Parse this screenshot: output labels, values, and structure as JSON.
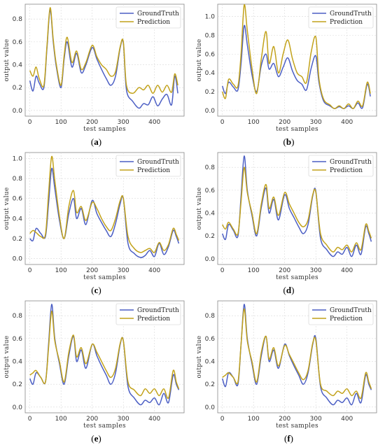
{
  "colors": {
    "ground_truth": "#4c5fc4",
    "prediction": "#c2a21a",
    "grid": "#d9d9d9",
    "frame": "#888888"
  },
  "chart_data": [
    {
      "type": "line",
      "panel": "(a)",
      "caption_letter": "a",
      "xlabel": "test samples",
      "ylabel": "output value",
      "xlim": [
        -15,
        495
      ],
      "ylim": [
        -0.05,
        0.93
      ],
      "xticks": [
        0,
        100,
        200,
        300,
        400
      ],
      "yticks": [
        0.0,
        0.2,
        0.4,
        0.6,
        0.8
      ],
      "yticklabels": [
        "0.0",
        "0.2",
        "0.4",
        "0.6",
        "0.8"
      ],
      "legend": "top-right",
      "series": [
        {
          "name": "GroundTruth",
          "x": [
            0,
            10,
            20,
            30,
            45,
            55,
            65,
            75,
            85,
            100,
            110,
            120,
            135,
            150,
            165,
            180,
            200,
            215,
            230,
            245,
            260,
            275,
            290,
            300,
            310,
            330,
            350,
            365,
            380,
            395,
            410,
            425,
            440,
            455,
            465,
            475
          ],
          "y": [
            0.26,
            0.17,
            0.3,
            0.24,
            0.2,
            0.55,
            0.88,
            0.6,
            0.38,
            0.2,
            0.45,
            0.6,
            0.38,
            0.5,
            0.33,
            0.4,
            0.55,
            0.45,
            0.36,
            0.28,
            0.22,
            0.3,
            0.55,
            0.59,
            0.18,
            0.08,
            0.02,
            0.06,
            0.05,
            0.12,
            0.04,
            0.1,
            0.14,
            0.05,
            0.3,
            0.15
          ]
        },
        {
          "name": "Prediction",
          "x": [
            0,
            10,
            20,
            30,
            45,
            55,
            65,
            75,
            85,
            100,
            110,
            120,
            135,
            150,
            165,
            180,
            200,
            215,
            230,
            245,
            260,
            275,
            290,
            300,
            310,
            330,
            350,
            365,
            380,
            395,
            410,
            425,
            440,
            455,
            465,
            475
          ],
          "y": [
            0.35,
            0.3,
            0.38,
            0.28,
            0.22,
            0.57,
            0.9,
            0.62,
            0.4,
            0.22,
            0.48,
            0.64,
            0.42,
            0.52,
            0.36,
            0.42,
            0.57,
            0.47,
            0.4,
            0.36,
            0.3,
            0.34,
            0.56,
            0.6,
            0.22,
            0.15,
            0.2,
            0.18,
            0.22,
            0.15,
            0.22,
            0.16,
            0.22,
            0.16,
            0.32,
            0.22
          ]
        }
      ]
    },
    {
      "type": "line",
      "panel": "(b)",
      "caption_letter": "b",
      "xlabel": "test samples",
      "ylabel": "output value",
      "xlim": [
        -15,
        495
      ],
      "ylim": [
        -0.06,
        1.13
      ],
      "xticks": [
        0,
        100,
        200,
        300,
        400
      ],
      "yticks": [
        0.0,
        0.2,
        0.4,
        0.6,
        0.8,
        1.0
      ],
      "yticklabels": [
        "0.0",
        "0.2",
        "0.4",
        "0.6",
        "0.8",
        "1.0"
      ],
      "legend": "top-right",
      "series": [
        {
          "name": "GroundTruth",
          "x": [
            0,
            10,
            20,
            35,
            50,
            60,
            70,
            80,
            95,
            110,
            125,
            140,
            150,
            165,
            180,
            195,
            210,
            225,
            240,
            255,
            270,
            285,
            300,
            310,
            325,
            345,
            360,
            375,
            390,
            405,
            420,
            435,
            450,
            465,
            475
          ],
          "y": [
            0.26,
            0.18,
            0.3,
            0.25,
            0.22,
            0.5,
            0.9,
            0.7,
            0.38,
            0.2,
            0.48,
            0.6,
            0.44,
            0.5,
            0.36,
            0.46,
            0.56,
            0.42,
            0.32,
            0.28,
            0.22,
            0.45,
            0.58,
            0.3,
            0.1,
            0.05,
            0.02,
            0.04,
            0.02,
            0.05,
            0.02,
            0.08,
            0.03,
            0.28,
            0.15
          ]
        },
        {
          "name": "Prediction",
          "x": [
            0,
            10,
            20,
            35,
            50,
            60,
            70,
            80,
            95,
            110,
            125,
            140,
            150,
            165,
            180,
            195,
            210,
            225,
            240,
            255,
            270,
            285,
            300,
            310,
            325,
            345,
            360,
            375,
            390,
            405,
            420,
            435,
            450,
            465,
            475
          ],
          "y": [
            0.2,
            0.13,
            0.33,
            0.28,
            0.26,
            0.6,
            1.12,
            0.85,
            0.45,
            0.18,
            0.55,
            0.84,
            0.5,
            0.68,
            0.4,
            0.6,
            0.75,
            0.55,
            0.4,
            0.36,
            0.3,
            0.62,
            0.78,
            0.34,
            0.12,
            0.06,
            0.02,
            0.05,
            0.02,
            0.07,
            0.02,
            0.1,
            0.05,
            0.3,
            0.18
          ]
        }
      ]
    },
    {
      "type": "line",
      "panel": "(c)",
      "caption_letter": "c",
      "xlabel": "test samples",
      "ylabel": "output value",
      "xlim": [
        -15,
        495
      ],
      "ylim": [
        -0.06,
        1.06
      ],
      "xticks": [
        0,
        100,
        200,
        300,
        400
      ],
      "yticks": [
        0.0,
        0.2,
        0.4,
        0.6,
        0.8,
        1.0
      ],
      "yticklabels": [
        "0.0",
        "0.2",
        "0.4",
        "0.6",
        "0.8",
        "1.0"
      ],
      "legend": "top-right",
      "series": [
        {
          "name": "GroundTruth",
          "x": [
            0,
            10,
            20,
            35,
            50,
            60,
            70,
            80,
            95,
            110,
            125,
            140,
            150,
            165,
            180,
            200,
            215,
            230,
            245,
            260,
            275,
            290,
            300,
            315,
            335,
            355,
            370,
            385,
            400,
            415,
            430,
            445,
            460,
            470,
            478
          ],
          "y": [
            0.2,
            0.18,
            0.3,
            0.25,
            0.22,
            0.55,
            0.9,
            0.7,
            0.38,
            0.2,
            0.45,
            0.6,
            0.4,
            0.5,
            0.34,
            0.58,
            0.45,
            0.36,
            0.28,
            0.22,
            0.35,
            0.55,
            0.6,
            0.15,
            0.05,
            0.01,
            0.03,
            0.08,
            0.02,
            0.15,
            0.04,
            0.12,
            0.28,
            0.22,
            0.15
          ]
        },
        {
          "name": "Prediction",
          "x": [
            0,
            10,
            20,
            35,
            50,
            60,
            70,
            80,
            95,
            110,
            125,
            140,
            150,
            165,
            180,
            200,
            215,
            230,
            245,
            260,
            275,
            290,
            300,
            315,
            335,
            355,
            370,
            385,
            400,
            415,
            430,
            445,
            460,
            470,
            478
          ],
          "y": [
            0.25,
            0.28,
            0.26,
            0.22,
            0.24,
            0.65,
            1.02,
            0.78,
            0.42,
            0.2,
            0.52,
            0.68,
            0.46,
            0.52,
            0.38,
            0.56,
            0.5,
            0.4,
            0.32,
            0.28,
            0.4,
            0.58,
            0.6,
            0.22,
            0.1,
            0.06,
            0.08,
            0.1,
            0.06,
            0.16,
            0.08,
            0.14,
            0.3,
            0.24,
            0.18
          ]
        }
      ]
    },
    {
      "type": "line",
      "panel": "(d)",
      "caption_letter": "d",
      "xlabel": "test samples",
      "ylabel": "output value",
      "xlim": [
        -15,
        495
      ],
      "ylim": [
        -0.05,
        0.93
      ],
      "xticks": [
        0,
        100,
        200,
        300,
        400
      ],
      "yticks": [
        0.0,
        0.2,
        0.4,
        0.6,
        0.8
      ],
      "yticklabels": [
        "0.0",
        "0.2",
        "0.4",
        "0.6",
        "0.8"
      ],
      "legend": "top-right",
      "series": [
        {
          "name": "GroundTruth",
          "x": [
            0,
            10,
            20,
            35,
            50,
            60,
            70,
            80,
            95,
            110,
            125,
            140,
            150,
            165,
            180,
            200,
            215,
            230,
            245,
            260,
            275,
            290,
            300,
            315,
            335,
            355,
            370,
            385,
            400,
            415,
            430,
            445,
            460,
            470,
            478
          ],
          "y": [
            0.22,
            0.17,
            0.3,
            0.25,
            0.2,
            0.55,
            0.9,
            0.6,
            0.38,
            0.2,
            0.45,
            0.62,
            0.4,
            0.52,
            0.34,
            0.56,
            0.44,
            0.36,
            0.28,
            0.22,
            0.3,
            0.55,
            0.59,
            0.18,
            0.08,
            0.02,
            0.06,
            0.04,
            0.1,
            0.02,
            0.12,
            0.04,
            0.28,
            0.22,
            0.15
          ]
        },
        {
          "name": "Prediction",
          "x": [
            0,
            10,
            20,
            35,
            50,
            60,
            70,
            80,
            95,
            110,
            125,
            140,
            150,
            165,
            180,
            200,
            215,
            230,
            245,
            260,
            275,
            290,
            300,
            315,
            335,
            355,
            370,
            385,
            400,
            415,
            430,
            445,
            460,
            470,
            478
          ],
          "y": [
            0.3,
            0.26,
            0.32,
            0.26,
            0.22,
            0.5,
            0.8,
            0.58,
            0.4,
            0.22,
            0.48,
            0.65,
            0.44,
            0.54,
            0.38,
            0.58,
            0.48,
            0.4,
            0.32,
            0.28,
            0.34,
            0.56,
            0.58,
            0.22,
            0.12,
            0.06,
            0.1,
            0.08,
            0.12,
            0.06,
            0.14,
            0.08,
            0.3,
            0.24,
            0.18
          ]
        }
      ]
    },
    {
      "type": "line",
      "panel": "(e)",
      "caption_letter": "e",
      "xlabel": "test samples",
      "ylabel": "output value",
      "xlim": [
        -15,
        495
      ],
      "ylim": [
        -0.05,
        0.93
      ],
      "xticks": [
        0,
        100,
        200,
        300,
        400
      ],
      "yticks": [
        0.0,
        0.2,
        0.4,
        0.6,
        0.8
      ],
      "yticklabels": [
        "0.0",
        "0.2",
        "0.4",
        "0.6",
        "0.8"
      ],
      "legend": "top-right",
      "series": [
        {
          "name": "GroundTruth",
          "x": [
            0,
            10,
            20,
            35,
            50,
            60,
            70,
            80,
            95,
            110,
            125,
            140,
            150,
            165,
            180,
            200,
            215,
            230,
            245,
            260,
            275,
            290,
            300,
            315,
            335,
            355,
            370,
            385,
            400,
            415,
            430,
            445,
            460,
            470,
            478
          ],
          "y": [
            0.25,
            0.2,
            0.3,
            0.26,
            0.22,
            0.55,
            0.9,
            0.6,
            0.38,
            0.2,
            0.45,
            0.62,
            0.4,
            0.5,
            0.34,
            0.55,
            0.45,
            0.36,
            0.28,
            0.2,
            0.3,
            0.55,
            0.58,
            0.18,
            0.08,
            0.02,
            0.06,
            0.04,
            0.08,
            0.02,
            0.12,
            0.04,
            0.28,
            0.2,
            0.15
          ]
        },
        {
          "name": "Prediction",
          "x": [
            0,
            10,
            20,
            35,
            50,
            60,
            70,
            80,
            95,
            110,
            125,
            140,
            150,
            165,
            180,
            200,
            215,
            230,
            245,
            260,
            275,
            290,
            300,
            315,
            335,
            355,
            370,
            385,
            400,
            415,
            430,
            445,
            460,
            470,
            478
          ],
          "y": [
            0.28,
            0.3,
            0.32,
            0.26,
            0.22,
            0.52,
            0.84,
            0.58,
            0.4,
            0.22,
            0.48,
            0.63,
            0.44,
            0.52,
            0.38,
            0.55,
            0.48,
            0.4,
            0.32,
            0.26,
            0.34,
            0.56,
            0.58,
            0.22,
            0.15,
            0.1,
            0.16,
            0.12,
            0.16,
            0.1,
            0.16,
            0.08,
            0.32,
            0.22,
            0.16
          ]
        }
      ]
    },
    {
      "type": "line",
      "panel": "(f)",
      "caption_letter": "f",
      "xlabel": "test samples",
      "ylabel": "output value",
      "xlim": [
        -15,
        495
      ],
      "ylim": [
        -0.05,
        0.93
      ],
      "xticks": [
        0,
        100,
        200,
        300,
        400
      ],
      "yticks": [
        0.0,
        0.2,
        0.4,
        0.6,
        0.8
      ],
      "yticklabels": [
        "0.0",
        "0.2",
        "0.4",
        "0.6",
        "0.8"
      ],
      "legend": "top-right",
      "series": [
        {
          "name": "GroundTruth",
          "x": [
            0,
            10,
            20,
            35,
            50,
            60,
            70,
            80,
            95,
            110,
            125,
            140,
            150,
            165,
            180,
            200,
            215,
            230,
            245,
            260,
            275,
            290,
            300,
            315,
            335,
            355,
            370,
            385,
            400,
            415,
            430,
            445,
            460,
            470,
            478
          ],
          "y": [
            0.25,
            0.18,
            0.3,
            0.26,
            0.2,
            0.55,
            0.9,
            0.6,
            0.38,
            0.2,
            0.45,
            0.62,
            0.4,
            0.5,
            0.34,
            0.55,
            0.45,
            0.36,
            0.28,
            0.2,
            0.3,
            0.55,
            0.6,
            0.18,
            0.08,
            0.02,
            0.06,
            0.04,
            0.08,
            0.02,
            0.12,
            0.04,
            0.28,
            0.2,
            0.15
          ]
        },
        {
          "name": "Prediction",
          "x": [
            0,
            10,
            20,
            35,
            50,
            60,
            70,
            80,
            95,
            110,
            125,
            140,
            150,
            165,
            180,
            200,
            215,
            230,
            245,
            260,
            275,
            290,
            300,
            315,
            335,
            355,
            370,
            385,
            400,
            415,
            430,
            445,
            460,
            470,
            478
          ],
          "y": [
            0.26,
            0.28,
            0.3,
            0.26,
            0.22,
            0.55,
            0.86,
            0.58,
            0.4,
            0.22,
            0.48,
            0.62,
            0.42,
            0.52,
            0.36,
            0.54,
            0.46,
            0.38,
            0.3,
            0.24,
            0.32,
            0.56,
            0.58,
            0.2,
            0.14,
            0.1,
            0.14,
            0.12,
            0.16,
            0.1,
            0.14,
            0.08,
            0.3,
            0.22,
            0.16
          ]
        }
      ]
    }
  ]
}
